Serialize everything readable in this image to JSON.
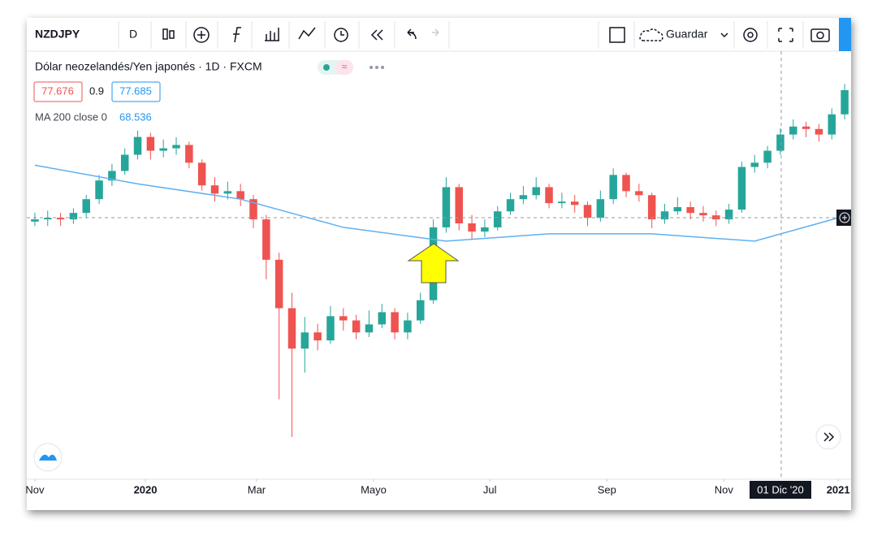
{
  "toolbar": {
    "symbol": "NZDJPY",
    "interval": "D",
    "save": "Guardar"
  },
  "legend": {
    "title": "Dólar neozelandés/Yen japonés · 1D · FXCM",
    "bid": "77.676",
    "spread": "0.9",
    "ask": "77.685",
    "indicator": "MA 200 close 0",
    "indicator_value": "68.536"
  },
  "chart_data": {
    "type": "candlestick",
    "open": [
      69.2,
      69.3,
      69.37,
      69.3,
      69.59,
      70.21,
      71.05,
      71.48,
      72.21,
      73.01,
      72.39,
      72.5,
      72.65,
      71.85,
      70.83,
      70.46,
      70.57,
      70.21,
      69.3,
      67.48,
      65.3,
      63.48,
      64.21,
      63.85,
      64.94,
      64.75,
      64.21,
      64.57,
      65.12,
      64.21,
      64.75,
      65.66,
      68.94,
      70.75,
      69.12,
      68.75,
      68.94,
      69.66,
      70.21,
      70.39,
      70.75,
      70.03,
      70.1,
      69.95,
      69.37,
      70.21,
      71.3,
      70.57,
      70.39,
      69.3,
      69.66,
      69.85,
      69.59,
      69.48,
      69.3,
      69.74,
      71.66,
      71.85,
      72.39,
      73.12,
      73.48,
      73.37,
      73.12,
      74.03
    ],
    "high": [
      69.6,
      69.7,
      69.6,
      69.8,
      70.4,
      71.3,
      71.8,
      72.5,
      73.3,
      73.2,
      72.9,
      73.0,
      72.8,
      72.0,
      71.2,
      71.0,
      70.9,
      70.4,
      69.5,
      67.8,
      66.0,
      64.9,
      64.6,
      65.4,
      65.3,
      65.0,
      65.2,
      65.5,
      65.3,
      65.1,
      66.0,
      69.3,
      71.2,
      70.9,
      69.5,
      69.3,
      69.9,
      70.5,
      70.8,
      71.2,
      70.9,
      70.5,
      70.4,
      70.1,
      70.6,
      71.6,
      71.4,
      70.9,
      70.5,
      70.0,
      70.3,
      70.1,
      69.9,
      69.7,
      70.0,
      71.9,
      72.2,
      72.6,
      73.4,
      73.8,
      73.7,
      73.6,
      74.3,
      75.4
    ],
    "low": [
      69.0,
      69.0,
      69.0,
      69.1,
      69.4,
      70.0,
      70.8,
      71.3,
      72.0,
      72.0,
      72.1,
      72.2,
      71.6,
      70.6,
      70.1,
      70.2,
      69.9,
      68.9,
      66.6,
      61.2,
      59.5,
      62.4,
      63.4,
      63.7,
      64.3,
      63.9,
      64.0,
      64.4,
      63.9,
      63.9,
      64.6,
      65.5,
      68.7,
      68.8,
      68.4,
      68.5,
      68.8,
      69.5,
      70.0,
      70.2,
      69.8,
      69.8,
      69.6,
      69.0,
      69.2,
      70.0,
      70.3,
      70.1,
      68.9,
      69.1,
      69.5,
      69.3,
      69.2,
      69.0,
      69.1,
      69.6,
      71.4,
      71.6,
      72.2,
      72.9,
      73.0,
      72.8,
      72.9,
      73.8
    ],
    "close": [
      69.3,
      69.37,
      69.3,
      69.59,
      70.21,
      71.05,
      71.48,
      72.21,
      73.01,
      72.39,
      72.5,
      72.65,
      71.85,
      70.83,
      70.46,
      70.57,
      70.21,
      69.3,
      67.48,
      65.3,
      63.48,
      64.21,
      63.85,
      64.94,
      64.75,
      64.21,
      64.57,
      65.12,
      64.21,
      64.75,
      65.66,
      68.94,
      70.75,
      69.12,
      68.75,
      68.94,
      69.66,
      70.21,
      70.39,
      70.75,
      70.03,
      70.1,
      69.95,
      69.37,
      70.21,
      71.3,
      70.57,
      70.39,
      69.3,
      69.66,
      69.85,
      69.59,
      69.48,
      69.3,
      69.74,
      71.66,
      71.85,
      72.39,
      73.12,
      73.48,
      73.37,
      73.12,
      74.03,
      75.12
    ],
    "up_color": "#26a69a",
    "down_color": "#ef5350",
    "ma": {
      "x": [
        0,
        8,
        16,
        24,
        32,
        40,
        48,
        56,
        63
      ],
      "values": [
        71.74,
        70.9,
        70.21,
        68.94,
        68.32,
        68.65,
        68.65,
        68.32,
        69.45
      ],
      "color": "#5fb0f0"
    },
    "xlim": [
      -0.5,
      63.5
    ],
    "ylim": [
      57.6,
      76.8
    ],
    "xticks": [
      {
        "value": 0,
        "label": "Nov"
      },
      {
        "value": 8.6,
        "label": "2020"
      },
      {
        "value": 17.25,
        "label": "Mar"
      },
      {
        "value": 26.35,
        "label": "Mayo"
      },
      {
        "value": 35.4,
        "label": "Jul"
      },
      {
        "value": 44.5,
        "label": "Sep"
      },
      {
        "value": 53.6,
        "label": "Nov"
      },
      {
        "value": 62.5,
        "label": "2021"
      }
    ],
    "crosshair_label": "01 Dic '20"
  }
}
